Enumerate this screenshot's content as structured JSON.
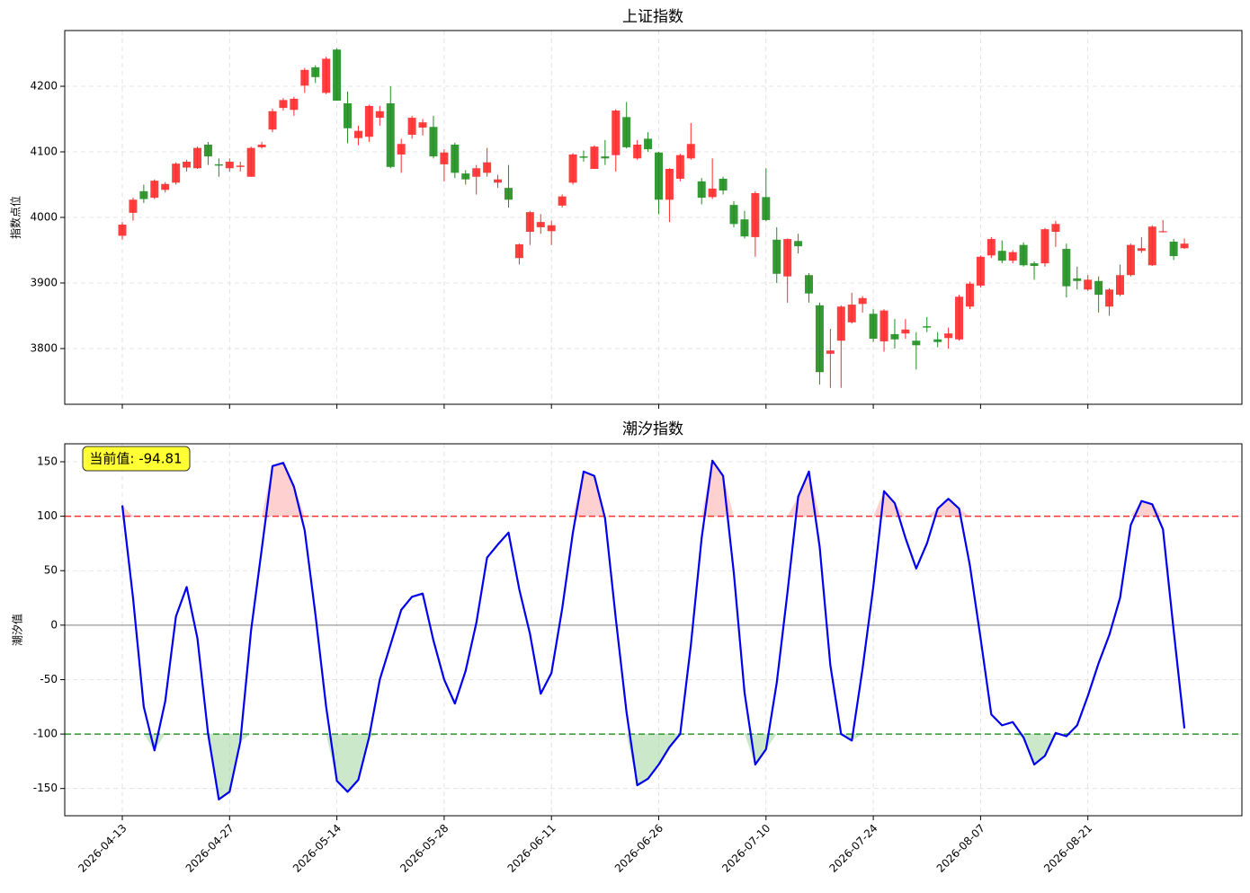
{
  "chart_data": [
    {
      "type": "candlestick",
      "title": "上证指数",
      "ylabel": "指数点位",
      "open": [
        3972,
        4007,
        4040,
        4030,
        4042,
        4053,
        4076,
        4075,
        4111,
        4081,
        4075,
        4077,
        4062,
        4107,
        4134,
        4167,
        4164,
        4201,
        4229,
        4190,
        4256,
        4174,
        4121,
        4123,
        4152,
        4174,
        4096,
        4126,
        4137,
        4138,
        4081,
        4111,
        4067,
        4062,
        4068,
        4053,
        4045,
        3938,
        3978,
        3985,
        3979,
        4018,
        4053,
        4093,
        4074,
        4093,
        4095,
        4153,
        4090,
        4120,
        4099,
        4027,
        4059,
        4090,
        4055,
        4031,
        4059,
        4019,
        3997,
        3970,
        4031,
        3966,
        3910,
        3964,
        3912,
        3866,
        3792,
        3812,
        3840,
        3868,
        3853,
        3811,
        3822,
        3823,
        3812,
        3834,
        3814,
        3816,
        3814,
        3864,
        3896,
        3942,
        3949,
        3934,
        3958,
        3930,
        3930,
        3978,
        3952,
        3907,
        3890,
        3903,
        3864,
        3882,
        3912,
        3949,
        3927,
        3978,
        3963,
        3953
      ],
      "high": [
        3993,
        4030,
        4050,
        4058,
        4054,
        4084,
        4088,
        4108,
        4115,
        4090,
        4090,
        4085,
        4108,
        4115,
        4166,
        4182,
        4184,
        4228,
        4232,
        4245,
        4258,
        4192,
        4140,
        4172,
        4170,
        4200,
        4120,
        4155,
        4150,
        4155,
        4104,
        4114,
        4072,
        4080,
        4106,
        4065,
        4080,
        3960,
        4010,
        4005,
        3995,
        4035,
        4098,
        4102,
        4110,
        4118,
        4165,
        4176,
        4118,
        4130,
        4100,
        4075,
        4097,
        4144,
        4060,
        4090,
        4062,
        4025,
        4010,
        4040,
        4075,
        3985,
        3968,
        3975,
        3915,
        3870,
        3830,
        3866,
        3885,
        3880,
        3860,
        3860,
        3845,
        3845,
        3825,
        3848,
        3825,
        3832,
        3882,
        3902,
        3942,
        3970,
        3965,
        3950,
        3962,
        3933,
        3984,
        3995,
        3960,
        3925,
        3912,
        3910,
        3892,
        3928,
        3960,
        3970,
        3988,
        3996,
        3967,
        3968
      ],
      "low": [
        3966,
        3995,
        4022,
        4028,
        4038,
        4050,
        4070,
        4074,
        4080,
        4062,
        4070,
        4070,
        4062,
        4105,
        4130,
        4163,
        4155,
        4190,
        4205,
        4188,
        4178,
        4113,
        4110,
        4115,
        4140,
        4075,
        4068,
        4120,
        4125,
        4090,
        4055,
        4060,
        4050,
        4035,
        4062,
        4045,
        4015,
        3928,
        3958,
        3975,
        3958,
        4015,
        4050,
        4085,
        4074,
        4080,
        4070,
        4105,
        4088,
        4100,
        4005,
        3993,
        4055,
        4088,
        4020,
        4028,
        4035,
        3985,
        3968,
        3940,
        3994,
        3900,
        3870,
        3945,
        3870,
        3745,
        3740,
        3740,
        3838,
        3855,
        3810,
        3795,
        3800,
        3815,
        3768,
        3825,
        3802,
        3800,
        3812,
        3860,
        3893,
        3938,
        3930,
        3930,
        3925,
        3905,
        3925,
        3955,
        3878,
        3890,
        3888,
        3855,
        3850,
        3880,
        3910,
        3946,
        3926,
        3977,
        3935,
        3952
      ],
      "close": [
        3989,
        4027,
        4028,
        4056,
        4051,
        4082,
        4085,
        4106,
        4093,
        4079,
        4085,
        4079,
        4106,
        4111,
        4162,
        4179,
        4181,
        4225,
        4214,
        4242,
        4178,
        4136,
        4132,
        4170,
        4162,
        4077,
        4112,
        4152,
        4145,
        4093,
        4099,
        4068,
        4058,
        4075,
        4084,
        4058,
        4027,
        3959,
        4008,
        3993,
        3988,
        4032,
        4096,
        4091,
        4108,
        4090,
        4163,
        4107,
        4111,
        4104,
        4027,
        4074,
        4095,
        4112,
        4030,
        4044,
        4041,
        3990,
        3971,
        4037,
        3996,
        3914,
        3967,
        3956,
        3884,
        3764,
        3797,
        3864,
        3867,
        3877,
        3815,
        3858,
        3814,
        3829,
        3805,
        3832,
        3810,
        3823,
        3879,
        3899,
        3940,
        3967,
        3934,
        3947,
        3927,
        3926,
        3982,
        3990,
        3895,
        3903,
        3905,
        3882,
        3890,
        3912,
        3958,
        3953,
        3986,
        3979,
        3941,
        3960
      ],
      "up_color": "#ff2a2a",
      "down_color": "#1f8f1f",
      "ylim": [
        3715,
        4285
      ],
      "yticks": [
        3800,
        3900,
        4000,
        4100,
        4200
      ],
      "grid": true
    },
    {
      "type": "line",
      "title": "潮汐指数",
      "ylabel": "潮汐值",
      "categories": [
        "2026-04-13",
        null,
        null,
        null,
        null,
        null,
        null,
        null,
        null,
        null,
        "2026-04-27",
        null,
        null,
        null,
        null,
        null,
        null,
        null,
        null,
        null,
        "2026-05-14",
        null,
        null,
        null,
        null,
        null,
        null,
        null,
        null,
        null,
        "2026-05-28",
        null,
        null,
        null,
        null,
        null,
        null,
        null,
        null,
        null,
        "2026-06-11",
        null,
        null,
        null,
        null,
        null,
        null,
        null,
        null,
        null,
        "2026-06-26",
        null,
        null,
        null,
        null,
        null,
        null,
        null,
        null,
        null,
        "2026-07-10",
        null,
        null,
        null,
        null,
        null,
        null,
        null,
        null,
        null,
        "2026-07-24",
        null,
        null,
        null,
        null,
        null,
        null,
        null,
        null,
        null,
        "2026-08-07",
        null,
        null,
        null,
        null,
        null,
        null,
        null,
        null,
        null,
        "2026-08-21",
        null,
        null,
        null,
        null,
        null,
        null,
        null,
        null,
        null
      ],
      "series": [
        {
          "color": "#0000ee",
          "values": [
            110,
            25,
            -75,
            -115,
            -70,
            8,
            35,
            -12,
            -100,
            -160,
            -153,
            -107,
            -5,
            70,
            146,
            149,
            127,
            87,
            10,
            -75,
            -143,
            -153,
            -142,
            -103,
            -50,
            -18,
            14,
            26,
            29,
            -14,
            -50,
            -72,
            -42,
            2,
            62,
            74,
            85,
            33,
            -8,
            -63,
            -44,
            15,
            85,
            141,
            137,
            98,
            6,
            -80,
            -147,
            -141,
            -128,
            -112,
            -100,
            -18,
            80,
            151,
            137,
            48,
            -62,
            -128,
            -114,
            -53,
            30,
            118,
            141,
            72,
            -37,
            -100,
            -106,
            -40,
            35,
            123,
            112,
            80,
            52,
            75,
            107,
            116,
            107,
            55,
            -12,
            -82,
            -92,
            -89,
            -103,
            -128,
            -120,
            -99,
            -102,
            -92,
            -65,
            -35,
            -9,
            25,
            92,
            114,
            111,
            88,
            -5,
            -94.81
          ]
        }
      ],
      "hlines": [
        {
          "value": 100,
          "color": "#ff3030",
          "fill": "#ffb0b0"
        },
        {
          "value": -100,
          "color": "#2e962e",
          "fill": "#a8d8a8"
        },
        {
          "value": 0,
          "color": "#999999"
        }
      ],
      "annotation": "当前值: -94.81",
      "ylim": [
        -175,
        166.5
      ],
      "yticks": [
        -150,
        -100,
        -50,
        0,
        50,
        100,
        150
      ],
      "grid": true
    }
  ]
}
